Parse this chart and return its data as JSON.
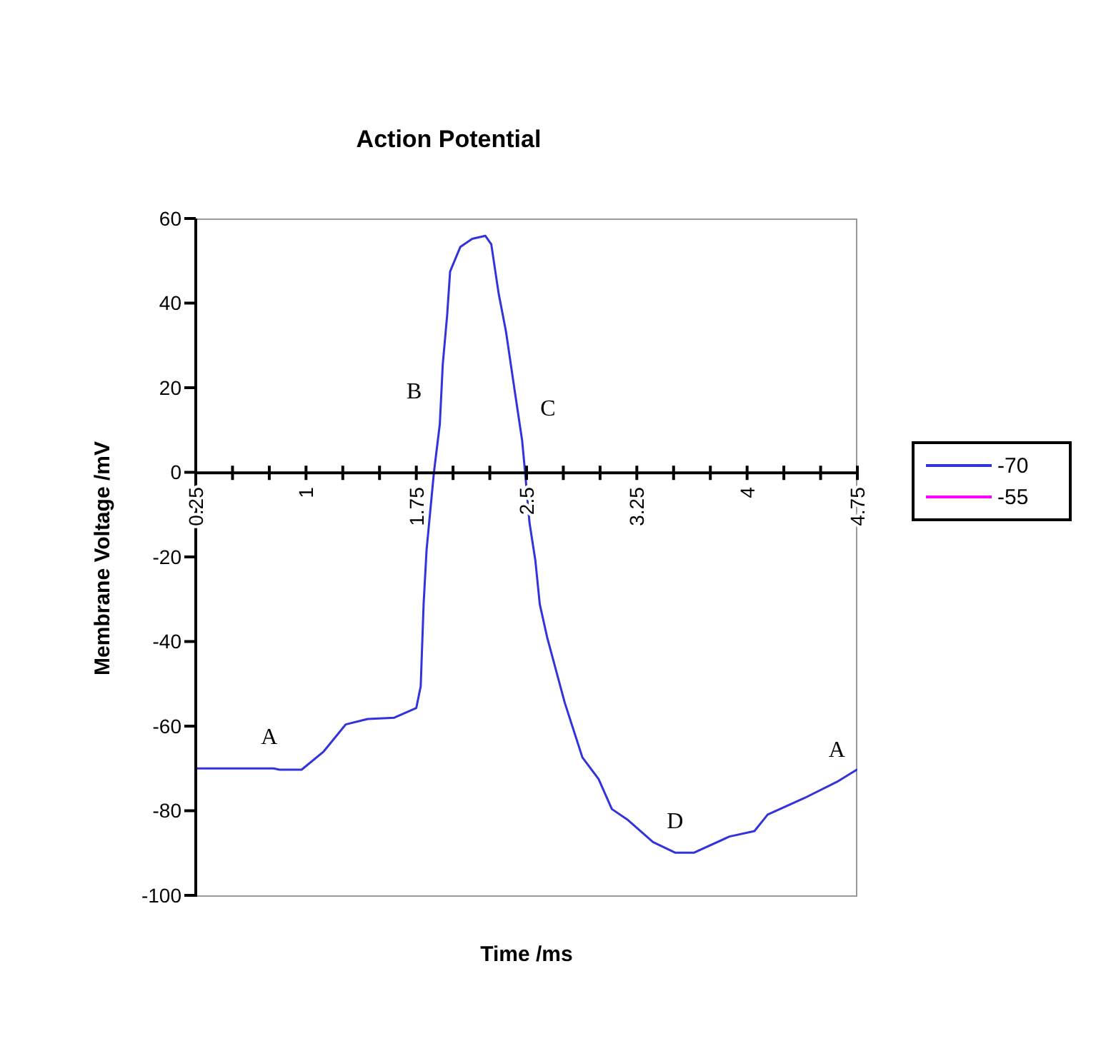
{
  "chart_data": {
    "type": "line",
    "title": "Action Potential",
    "xlabel": "Time /ms",
    "ylabel": "Membrane Voltage /mV",
    "xlim": [
      0.25,
      4.75
    ],
    "xticks": [
      0.25,
      {
        "value": 0.5,
        "label": null
      },
      {
        "value": 0.75,
        "label": null
      },
      1,
      {
        "value": 1.25,
        "label": null
      },
      {
        "value": 1.5,
        "label": null
      },
      1.75,
      {
        "value": 2,
        "label": null
      },
      {
        "value": 2.25,
        "label": null
      },
      2.5,
      {
        "value": 2.75,
        "label": null
      },
      {
        "value": 3,
        "label": null
      },
      3.25,
      {
        "value": 3.5,
        "label": null
      },
      {
        "value": 3.75,
        "label": null
      },
      4,
      {
        "value": 4.25,
        "label": null
      },
      {
        "value": 4.5,
        "label": null
      },
      4.75
    ],
    "ylim": [
      -100,
      60
    ],
    "yticks": [
      -100,
      -80,
      -60,
      -40,
      -20,
      0,
      20,
      40,
      60
    ],
    "grid": false,
    "legend": "right",
    "series": [
      {
        "name": "-70",
        "color": "#3333dd",
        "x": [
          0.25,
          0.78,
          0.82,
          0.97,
          1.12,
          1.27,
          1.42,
          1.6,
          1.75,
          1.78,
          1.8,
          1.82,
          1.87,
          1.91,
          1.93,
          1.96,
          1.98,
          2.05,
          2.13,
          2.22,
          2.26,
          2.31,
          2.36,
          2.42,
          2.47,
          2.49,
          2.52,
          2.56,
          2.59,
          2.64,
          2.76,
          2.88,
          2.99,
          3.08,
          3.19,
          3.36,
          3.51,
          3.64,
          3.88,
          4.05,
          4.14,
          4.39,
          4.61,
          4.75
        ],
        "values": [
          -70,
          -70,
          -70.3,
          -70.3,
          -66,
          -59.6,
          -58.3,
          -58,
          -55.7,
          -50.6,
          -31,
          -18.3,
          0,
          11.4,
          25.5,
          37.2,
          47.5,
          53.3,
          55.2,
          55.9,
          53.9,
          42.3,
          33.3,
          19.1,
          7.5,
          0,
          -11.9,
          -20.9,
          -31.2,
          -39,
          -54.5,
          -67.4,
          -72.5,
          -79.6,
          -82.2,
          -87.4,
          -89.9,
          -89.9,
          -86.1,
          -84.8,
          -80.9,
          -77,
          -73.2,
          -70.2
        ]
      },
      {
        "name": "-55",
        "color": "#ff00ff"
      }
    ],
    "annotations": [
      {
        "text": "A",
        "x": 0.75,
        "y": -70
      },
      {
        "text": "B",
        "x": 1.91,
        "y": 11.4
      },
      {
        "text": "C",
        "x": 2.47,
        "y": 7.5
      },
      {
        "text": "D",
        "x": 3.51,
        "y": -89.9
      },
      {
        "text": "A",
        "x": 4.61,
        "y": -73.2
      }
    ]
  }
}
